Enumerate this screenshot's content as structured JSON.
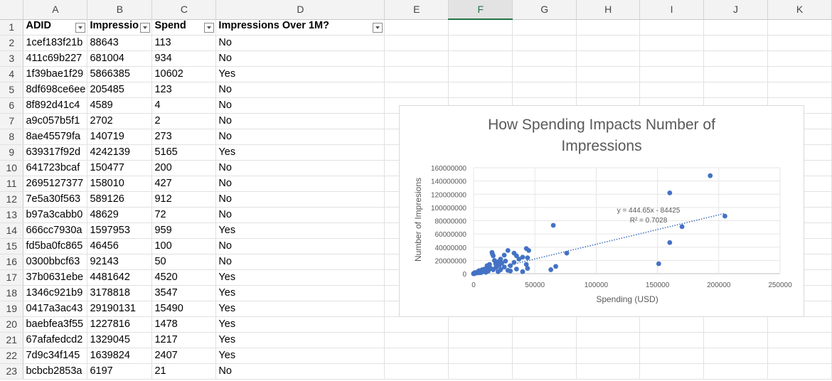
{
  "columns": [
    "A",
    "B",
    "C",
    "D",
    "E",
    "F",
    "G",
    "H",
    "I",
    "J",
    "K"
  ],
  "selected_column": "F",
  "header_row": {
    "row_number": "1",
    "cells": [
      "ADID",
      "Impressio",
      "Spend",
      "Impressions Over 1M?"
    ]
  },
  "rows": [
    {
      "n": "2",
      "adid": "1cef183f21b",
      "impr": "88643",
      "spend": "113",
      "over": "No"
    },
    {
      "n": "3",
      "adid": "411c69b227",
      "impr": "681004",
      "spend": "934",
      "over": "No"
    },
    {
      "n": "4",
      "adid": "1f39bae1f29",
      "impr": "5866385",
      "spend": "10602",
      "over": "Yes"
    },
    {
      "n": "5",
      "adid": "8df698ce6ee",
      "impr": "205485",
      "spend": "123",
      "over": "No"
    },
    {
      "n": "6",
      "adid": "8f892d41c4",
      "impr": "4589",
      "spend": "4",
      "over": "No"
    },
    {
      "n": "7",
      "adid": "a9c057b5f1",
      "impr": "2702",
      "spend": "2",
      "over": "No"
    },
    {
      "n": "8",
      "adid": "8ae45579fa",
      "impr": "140719",
      "spend": "273",
      "over": "No"
    },
    {
      "n": "9",
      "adid": "639317f92d",
      "impr": "4242139",
      "spend": "5165",
      "over": "Yes"
    },
    {
      "n": "10",
      "adid": "641723bcaf",
      "impr": "150477",
      "spend": "200",
      "over": "No"
    },
    {
      "n": "11",
      "adid": "2695127377",
      "impr": "158010",
      "spend": "427",
      "over": "No"
    },
    {
      "n": "12",
      "adid": "7e5a30f563",
      "impr": "589126",
      "spend": "912",
      "over": "No"
    },
    {
      "n": "13",
      "adid": "b97a3cabb0",
      "impr": "48629",
      "spend": "72",
      "over": "No"
    },
    {
      "n": "14",
      "adid": "666cc7930a",
      "impr": "1597953",
      "spend": "959",
      "over": "Yes"
    },
    {
      "n": "15",
      "adid": "fd5ba0fc865",
      "impr": "46456",
      "spend": "100",
      "over": "No"
    },
    {
      "n": "16",
      "adid": "0300bbcf63",
      "impr": "92143",
      "spend": "50",
      "over": "No"
    },
    {
      "n": "17",
      "adid": "37b0631ebe",
      "impr": "4481642",
      "spend": "4520",
      "over": "Yes"
    },
    {
      "n": "18",
      "adid": "1346c921b9",
      "impr": "3178818",
      "spend": "3547",
      "over": "Yes"
    },
    {
      "n": "19",
      "adid": "0417a3ac43",
      "impr": "29190131",
      "spend": "15490",
      "over": "Yes"
    },
    {
      "n": "20",
      "adid": "baebfea3f55",
      "impr": "1227816",
      "spend": "1478",
      "over": "Yes"
    },
    {
      "n": "21",
      "adid": "67afafedcd2",
      "impr": "1329045",
      "spend": "1217",
      "over": "Yes"
    },
    {
      "n": "22",
      "adid": "7d9c34f145",
      "impr": "1639824",
      "spend": "2407",
      "over": "Yes"
    },
    {
      "n": "23",
      "adid": "bcbcb2853a",
      "impr": "6197",
      "spend": "21",
      "over": "No"
    }
  ],
  "colors": {
    "point": "#4472C4",
    "selected_header": "#217346"
  },
  "chart_data": {
    "type": "scatter",
    "title": "How Spending Impacts Number of Impressions",
    "title_lines": [
      "How Spending Impacts Number of",
      "Impressions"
    ],
    "xlabel": "Spending (USD)",
    "ylabel": "Number of Impresions",
    "xlim": [
      0,
      250000
    ],
    "ylim": [
      0,
      160000000
    ],
    "xticks": [
      "0",
      "50000",
      "100000",
      "150000",
      "200000",
      "250000"
    ],
    "yticks": [
      "0",
      "20000000",
      "40000000",
      "60000000",
      "80000000",
      "100000000",
      "120000000",
      "140000000",
      "160000000"
    ],
    "grid": true,
    "trendline": {
      "type": "linear",
      "slope": 444.65,
      "intercept": -84425,
      "equation": "y = 444.65x - 84425",
      "r2": "R² = 0.7028"
    },
    "points": [
      [
        193000,
        148000000
      ],
      [
        160000,
        122000000
      ],
      [
        205000,
        87000000
      ],
      [
        170000,
        71000000
      ],
      [
        160000,
        47000000
      ],
      [
        151000,
        15000000
      ],
      [
        65000,
        73000000
      ],
      [
        76000,
        31000000
      ],
      [
        67000,
        11000000
      ],
      [
        63000,
        6000000
      ],
      [
        43000,
        38000000
      ],
      [
        45000,
        35000000
      ],
      [
        40000,
        25000000
      ],
      [
        44000,
        24000000
      ],
      [
        43000,
        14000000
      ],
      [
        44000,
        8000000
      ],
      [
        40000,
        3000000
      ],
      [
        33000,
        31000000
      ],
      [
        35000,
        27000000
      ],
      [
        37000,
        22000000
      ],
      [
        33000,
        17000000
      ],
      [
        30000,
        12000000
      ],
      [
        28000,
        35000000
      ],
      [
        25000,
        28000000
      ],
      [
        22000,
        22000000
      ],
      [
        20000,
        18000000
      ],
      [
        15000,
        32000000
      ],
      [
        16000,
        27000000
      ],
      [
        17000,
        20000000
      ],
      [
        18000,
        15000000
      ],
      [
        10602,
        5866385
      ],
      [
        15490,
        29190131
      ],
      [
        12000,
        10000000
      ],
      [
        14000,
        8000000
      ],
      [
        25000,
        10000000
      ],
      [
        22000,
        6000000
      ],
      [
        28000,
        5000000
      ],
      [
        35000,
        7000000
      ],
      [
        30000,
        4000000
      ],
      [
        20000,
        3000000
      ],
      [
        18000,
        9000000
      ],
      [
        10000,
        2000000
      ],
      [
        8000,
        3000000
      ],
      [
        6000,
        1500000
      ],
      [
        5165,
        4242139
      ],
      [
        4520,
        4481642
      ],
      [
        3547,
        3178818
      ],
      [
        2407,
        1639824
      ],
      [
        1478,
        1227816
      ],
      [
        1217,
        1329045
      ],
      [
        959,
        1597953
      ],
      [
        934,
        681004
      ],
      [
        912,
        589126
      ],
      [
        427,
        158010
      ],
      [
        273,
        140719
      ],
      [
        200,
        150477
      ],
      [
        123,
        205485
      ],
      [
        113,
        88643
      ],
      [
        100,
        46456
      ],
      [
        72,
        48629
      ],
      [
        50,
        92143
      ],
      [
        21,
        6197
      ],
      [
        4,
        4589
      ],
      [
        2,
        2702
      ],
      [
        7000,
        6000000
      ],
      [
        9000,
        7000000
      ],
      [
        11000,
        12000000
      ],
      [
        13000,
        14000000
      ],
      [
        12000,
        4000000
      ],
      [
        16000,
        6000000
      ],
      [
        19000,
        11000000
      ],
      [
        21000,
        13000000
      ],
      [
        23000,
        16000000
      ],
      [
        26000,
        19000000
      ],
      [
        3000,
        2000000
      ],
      [
        2000,
        1000000
      ],
      [
        1500,
        800000
      ],
      [
        5000,
        2500000
      ],
      [
        4000,
        1200000
      ]
    ]
  }
}
